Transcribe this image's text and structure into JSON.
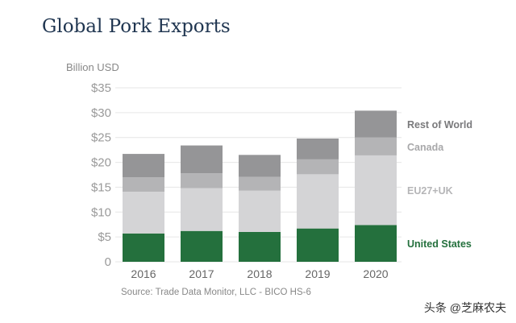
{
  "chart_data": {
    "type": "bar",
    "stacked": true,
    "title": "Global Pork Exports",
    "ylabel": "Billion USD",
    "ylim": [
      0,
      35
    ],
    "yticks": [
      0,
      5,
      10,
      15,
      20,
      25,
      30,
      35
    ],
    "ytick_labels": [
      "0",
      "$5",
      "$10",
      "$15",
      "$20",
      "$25",
      "$30",
      "$35"
    ],
    "grid": true,
    "legend": "right, labels beside 2020 bar",
    "categories": [
      "2016",
      "2017",
      "2018",
      "2019",
      "2020"
    ],
    "series": [
      {
        "name": "United States",
        "color": "#24703d",
        "label_color": "#24703d",
        "values": [
          5.7,
          6.2,
          6.0,
          6.7,
          7.4
        ]
      },
      {
        "name": "EU27+UK",
        "color": "#d4d4d6",
        "label_color": "#b5b5b7",
        "values": [
          8.4,
          8.6,
          8.3,
          10.9,
          14.0
        ]
      },
      {
        "name": "Canada",
        "color": "#b4b4b6",
        "label_color": "#a8a8aa",
        "values": [
          2.9,
          3.0,
          2.8,
          3.0,
          3.6
        ]
      },
      {
        "name": "Rest of World",
        "color": "#959597",
        "label_color": "#7a7a7c",
        "values": [
          4.7,
          5.6,
          4.4,
          4.2,
          5.4
        ]
      }
    ],
    "source": "Source: Trade Data Monitor, LLC - BICO HS-6"
  },
  "watermark": "头条 @芝麻农夫"
}
